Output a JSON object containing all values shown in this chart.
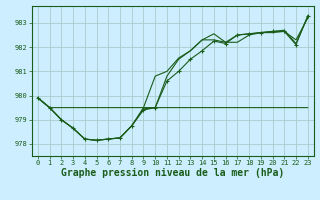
{
  "background_color": "#cceeff",
  "grid_color": "#aacccc",
  "line_color": "#1a5c1a",
  "marker_color": "#1a5c1a",
  "xlabel": "Graphe pression niveau de la mer (hPa)",
  "xlabel_fontsize": 7.0,
  "ylim": [
    977.5,
    983.7
  ],
  "xlim": [
    -0.5,
    23.5
  ],
  "yticks": [
    978,
    979,
    980,
    981,
    982,
    983
  ],
  "xticks": [
    0,
    1,
    2,
    3,
    4,
    5,
    6,
    7,
    8,
    9,
    10,
    11,
    12,
    13,
    14,
    15,
    16,
    17,
    18,
    19,
    20,
    21,
    22,
    23
  ],
  "series_with_markers": [
    [
      979.9,
      979.5,
      979.0,
      978.65,
      978.2,
      978.15,
      978.2,
      978.25,
      978.75,
      979.4,
      979.5,
      980.6,
      981.0,
      981.5,
      981.85,
      982.25,
      982.15,
      982.5,
      982.55,
      982.6,
      982.65,
      982.65,
      982.1,
      983.3
    ]
  ],
  "series_no_markers": [
    [
      979.9,
      979.5,
      979.0,
      978.65,
      978.2,
      978.15,
      978.2,
      978.25,
      978.75,
      979.5,
      980.8,
      981.0,
      981.55,
      981.85,
      982.3,
      982.55,
      982.2,
      982.2,
      982.5,
      982.6,
      982.65,
      982.7,
      982.15,
      983.25
    ],
    [
      979.9,
      979.5,
      979.0,
      978.65,
      978.2,
      978.15,
      978.2,
      978.25,
      978.75,
      979.45,
      979.5,
      980.8,
      981.5,
      981.85,
      982.3,
      982.3,
      982.2,
      982.5,
      982.55,
      982.6,
      982.6,
      982.65,
      982.3,
      983.2
    ],
    [
      979.9,
      979.5,
      979.5,
      979.5,
      979.5,
      979.5,
      979.5,
      979.5,
      979.5,
      979.5,
      979.5,
      979.5,
      979.5,
      979.5,
      979.5,
      979.5,
      979.5,
      979.5,
      979.5,
      979.5,
      979.5,
      979.5,
      979.5,
      979.5
    ]
  ]
}
